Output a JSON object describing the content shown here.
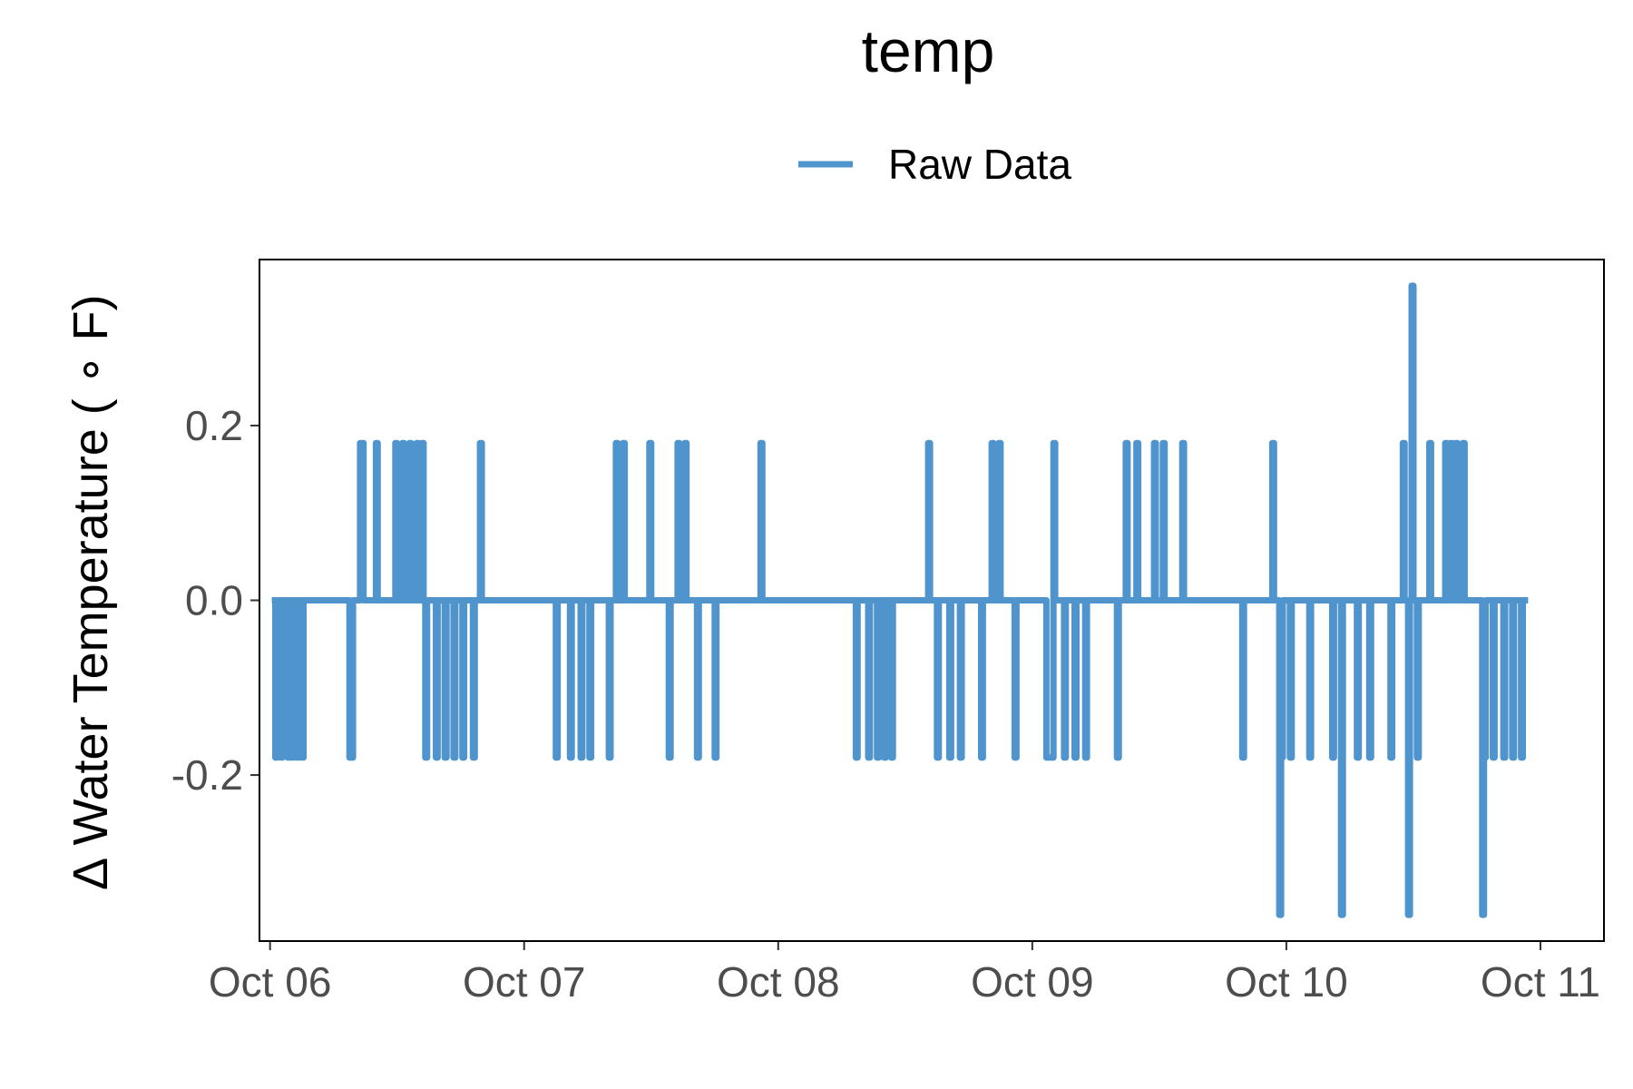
{
  "chart_data": {
    "type": "line",
    "title": "temp",
    "xlabel": "",
    "ylabel": "∆ Water Temperature ( ∘ F)",
    "x_range": [
      "2023-10-05T23:00",
      "2023-10-11T06:00"
    ],
    "ylim": [
      -0.39,
      0.39
    ],
    "x_ticks": [
      {
        "label": "Oct 06",
        "value": "2023-10-06T00:00"
      },
      {
        "label": "Oct 07",
        "value": "2023-10-07T00:00"
      },
      {
        "label": "Oct 08",
        "value": "2023-10-08T00:00"
      },
      {
        "label": "Oct 09",
        "value": "2023-10-09T00:00"
      },
      {
        "label": "Oct 10",
        "value": "2023-10-10T00:00"
      },
      {
        "label": "Oct 11",
        "value": "2023-10-11T00:00"
      }
    ],
    "y_ticks": [
      {
        "label": "-0.2",
        "value": -0.2
      },
      {
        "label": "0.0",
        "value": 0.0
      },
      {
        "label": "0.2",
        "value": 0.2
      }
    ],
    "grid": false,
    "legend_position": "top",
    "series": [
      {
        "name": "Raw Data",
        "color": "#4f94cd",
        "points": [
          [
            "2023-10-06T00:10",
            0.0
          ],
          [
            "2023-10-06T00:30",
            -0.18
          ],
          [
            "2023-10-06T00:40",
            0.0
          ],
          [
            "2023-10-06T01:00",
            -0.18
          ],
          [
            "2023-10-06T01:10",
            0.0
          ],
          [
            "2023-10-06T01:40",
            -0.18
          ],
          [
            "2023-10-06T01:50",
            0.0
          ],
          [
            "2023-10-06T02:00",
            -0.18
          ],
          [
            "2023-10-06T02:10",
            0.0
          ],
          [
            "2023-10-06T02:30",
            -0.18
          ],
          [
            "2023-10-06T02:40",
            0.0
          ],
          [
            "2023-10-06T03:00",
            -0.18
          ],
          [
            "2023-10-06T03:10",
            0.0
          ],
          [
            "2023-10-06T07:30",
            -0.18
          ],
          [
            "2023-10-06T07:50",
            0.0
          ],
          [
            "2023-10-06T08:30",
            0.18
          ],
          [
            "2023-10-06T08:50",
            0.0
          ],
          [
            "2023-10-06T10:00",
            0.18
          ],
          [
            "2023-10-06T10:10",
            0.0
          ],
          [
            "2023-10-06T11:50",
            0.18
          ],
          [
            "2023-10-06T12:00",
            0.0
          ],
          [
            "2023-10-06T12:30",
            0.18
          ],
          [
            "2023-10-06T12:40",
            0.0
          ],
          [
            "2023-10-06T13:10",
            0.18
          ],
          [
            "2023-10-06T13:20",
            0.0
          ],
          [
            "2023-10-06T13:50",
            0.18
          ],
          [
            "2023-10-06T14:00",
            0.0
          ],
          [
            "2023-10-06T14:20",
            0.18
          ],
          [
            "2023-10-06T14:30",
            0.0
          ],
          [
            "2023-10-06T14:40",
            -0.18
          ],
          [
            "2023-10-06T14:50",
            0.0
          ],
          [
            "2023-10-06T15:40",
            -0.18
          ],
          [
            "2023-10-06T15:50",
            0.0
          ],
          [
            "2023-10-06T16:30",
            -0.18
          ],
          [
            "2023-10-06T16:40",
            0.0
          ],
          [
            "2023-10-06T17:20",
            -0.18
          ],
          [
            "2023-10-06T17:30",
            0.0
          ],
          [
            "2023-10-06T18:10",
            -0.18
          ],
          [
            "2023-10-06T18:20",
            0.0
          ],
          [
            "2023-10-06T19:10",
            -0.18
          ],
          [
            "2023-10-06T19:20",
            0.0
          ],
          [
            "2023-10-06T19:50",
            0.18
          ],
          [
            "2023-10-06T20:00",
            0.0
          ],
          [
            "2023-10-07T03:00",
            -0.18
          ],
          [
            "2023-10-07T03:10",
            0.0
          ],
          [
            "2023-10-07T04:20",
            -0.18
          ],
          [
            "2023-10-07T04:30",
            0.0
          ],
          [
            "2023-10-07T05:20",
            -0.18
          ],
          [
            "2023-10-07T05:30",
            0.0
          ],
          [
            "2023-10-07T06:10",
            -0.18
          ],
          [
            "2023-10-07T06:20",
            0.0
          ],
          [
            "2023-10-07T08:00",
            -0.18
          ],
          [
            "2023-10-07T08:10",
            0.0
          ],
          [
            "2023-10-07T08:40",
            0.18
          ],
          [
            "2023-10-07T08:50",
            0.0
          ],
          [
            "2023-10-07T09:20",
            0.18
          ],
          [
            "2023-10-07T09:30",
            0.0
          ],
          [
            "2023-10-07T11:50",
            0.18
          ],
          [
            "2023-10-07T12:00",
            0.0
          ],
          [
            "2023-10-07T13:40",
            -0.18
          ],
          [
            "2023-10-07T13:50",
            0.0
          ],
          [
            "2023-10-07T14:30",
            0.18
          ],
          [
            "2023-10-07T14:40",
            0.0
          ],
          [
            "2023-10-07T15:10",
            0.18
          ],
          [
            "2023-10-07T15:20",
            0.0
          ],
          [
            "2023-10-07T16:20",
            -0.18
          ],
          [
            "2023-10-07T16:30",
            0.0
          ],
          [
            "2023-10-07T18:00",
            -0.18
          ],
          [
            "2023-10-07T18:10",
            0.0
          ],
          [
            "2023-10-07T22:20",
            0.18
          ],
          [
            "2023-10-07T22:30",
            0.0
          ],
          [
            "2023-10-08T07:20",
            -0.18
          ],
          [
            "2023-10-08T07:30",
            0.0
          ],
          [
            "2023-10-08T08:30",
            -0.18
          ],
          [
            "2023-10-08T08:40",
            0.0
          ],
          [
            "2023-10-08T09:20",
            -0.18
          ],
          [
            "2023-10-08T09:30",
            0.0
          ],
          [
            "2023-10-08T10:00",
            -0.18
          ],
          [
            "2023-10-08T10:10",
            0.0
          ],
          [
            "2023-10-08T10:40",
            -0.18
          ],
          [
            "2023-10-08T10:50",
            0.0
          ],
          [
            "2023-10-08T14:10",
            0.18
          ],
          [
            "2023-10-08T14:20",
            0.0
          ],
          [
            "2023-10-08T15:00",
            -0.18
          ],
          [
            "2023-10-08T15:10",
            0.0
          ],
          [
            "2023-10-08T16:10",
            -0.18
          ],
          [
            "2023-10-08T16:20",
            0.0
          ],
          [
            "2023-10-08T17:10",
            -0.18
          ],
          [
            "2023-10-08T17:20",
            0.0
          ],
          [
            "2023-10-08T19:10",
            -0.18
          ],
          [
            "2023-10-08T19:20",
            0.0
          ],
          [
            "2023-10-08T20:10",
            0.18
          ],
          [
            "2023-10-08T20:20",
            0.0
          ],
          [
            "2023-10-08T20:50",
            0.18
          ],
          [
            "2023-10-08T21:00",
            0.0
          ],
          [
            "2023-10-08T22:20",
            -0.18
          ],
          [
            "2023-10-08T22:30",
            0.0
          ],
          [
            "2023-10-09T01:20",
            -0.18
          ],
          [
            "2023-10-09T02:00",
            0.0
          ],
          [
            "2023-10-09T02:00",
            0.18
          ],
          [
            "2023-10-09T02:10",
            0.0
          ],
          [
            "2023-10-09T03:00",
            -0.18
          ],
          [
            "2023-10-09T03:10",
            0.0
          ],
          [
            "2023-10-09T04:00",
            -0.18
          ],
          [
            "2023-10-09T04:10",
            0.0
          ],
          [
            "2023-10-09T05:00",
            -0.18
          ],
          [
            "2023-10-09T05:10",
            0.0
          ],
          [
            "2023-10-09T08:00",
            -0.18
          ],
          [
            "2023-10-09T08:10",
            0.0
          ],
          [
            "2023-10-09T08:50",
            0.18
          ],
          [
            "2023-10-09T09:00",
            0.0
          ],
          [
            "2023-10-09T09:50",
            0.18
          ],
          [
            "2023-10-09T10:00",
            0.0
          ],
          [
            "2023-10-09T11:30",
            0.18
          ],
          [
            "2023-10-09T11:40",
            0.0
          ],
          [
            "2023-10-09T12:20",
            0.18
          ],
          [
            "2023-10-09T12:30",
            0.0
          ],
          [
            "2023-10-09T14:10",
            0.18
          ],
          [
            "2023-10-09T14:20",
            0.0
          ],
          [
            "2023-10-09T19:50",
            -0.18
          ],
          [
            "2023-10-09T20:00",
            0.0
          ],
          [
            "2023-10-09T22:40",
            0.18
          ],
          [
            "2023-10-09T22:50",
            0.0
          ],
          [
            "2023-10-09T23:20",
            -0.36
          ],
          [
            "2023-10-09T23:30",
            -0.18
          ],
          [
            "2023-10-09T23:40",
            0.0
          ],
          [
            "2023-10-10T00:20",
            -0.18
          ],
          [
            "2023-10-10T00:30",
            0.0
          ],
          [
            "2023-10-10T02:10",
            -0.18
          ],
          [
            "2023-10-10T02:20",
            0.0
          ],
          [
            "2023-10-10T04:20",
            -0.18
          ],
          [
            "2023-10-10T04:30",
            0.0
          ],
          [
            "2023-10-10T05:10",
            -0.36
          ],
          [
            "2023-10-10T05:20",
            0.0
          ],
          [
            "2023-10-10T06:40",
            -0.18
          ],
          [
            "2023-10-10T06:50",
            0.0
          ],
          [
            "2023-10-10T07:50",
            -0.18
          ],
          [
            "2023-10-10T08:00",
            0.0
          ],
          [
            "2023-10-10T09:50",
            -0.18
          ],
          [
            "2023-10-10T10:00",
            0.0
          ],
          [
            "2023-10-10T11:00",
            0.18
          ],
          [
            "2023-10-10T11:10",
            0.0
          ],
          [
            "2023-10-10T11:30",
            -0.36
          ],
          [
            "2023-10-10T11:40",
            0.0
          ],
          [
            "2023-10-10T11:50",
            0.36
          ],
          [
            "2023-10-10T12:00",
            0.0
          ],
          [
            "2023-10-10T12:20",
            -0.18
          ],
          [
            "2023-10-10T12:30",
            0.0
          ],
          [
            "2023-10-10T13:30",
            0.18
          ],
          [
            "2023-10-10T13:40",
            0.0
          ],
          [
            "2023-10-10T15:00",
            0.18
          ],
          [
            "2023-10-10T15:10",
            0.0
          ],
          [
            "2023-10-10T15:30",
            0.18
          ],
          [
            "2023-10-10T15:40",
            0.0
          ],
          [
            "2023-10-10T16:00",
            0.18
          ],
          [
            "2023-10-10T16:10",
            0.0
          ],
          [
            "2023-10-10T16:40",
            0.18
          ],
          [
            "2023-10-10T16:50",
            0.0
          ],
          [
            "2023-10-10T18:30",
            -0.36
          ],
          [
            "2023-10-10T18:40",
            -0.18
          ],
          [
            "2023-10-10T18:50",
            0.0
          ],
          [
            "2023-10-10T19:30",
            -0.18
          ],
          [
            "2023-10-10T19:40",
            0.0
          ],
          [
            "2023-10-10T20:30",
            -0.18
          ],
          [
            "2023-10-10T20:40",
            0.0
          ],
          [
            "2023-10-10T21:20",
            -0.18
          ],
          [
            "2023-10-10T21:30",
            0.0
          ],
          [
            "2023-10-10T22:10",
            -0.18
          ],
          [
            "2023-10-10T22:20",
            0.0
          ],
          [
            "2023-10-10T22:50",
            0.0
          ]
        ]
      }
    ]
  }
}
